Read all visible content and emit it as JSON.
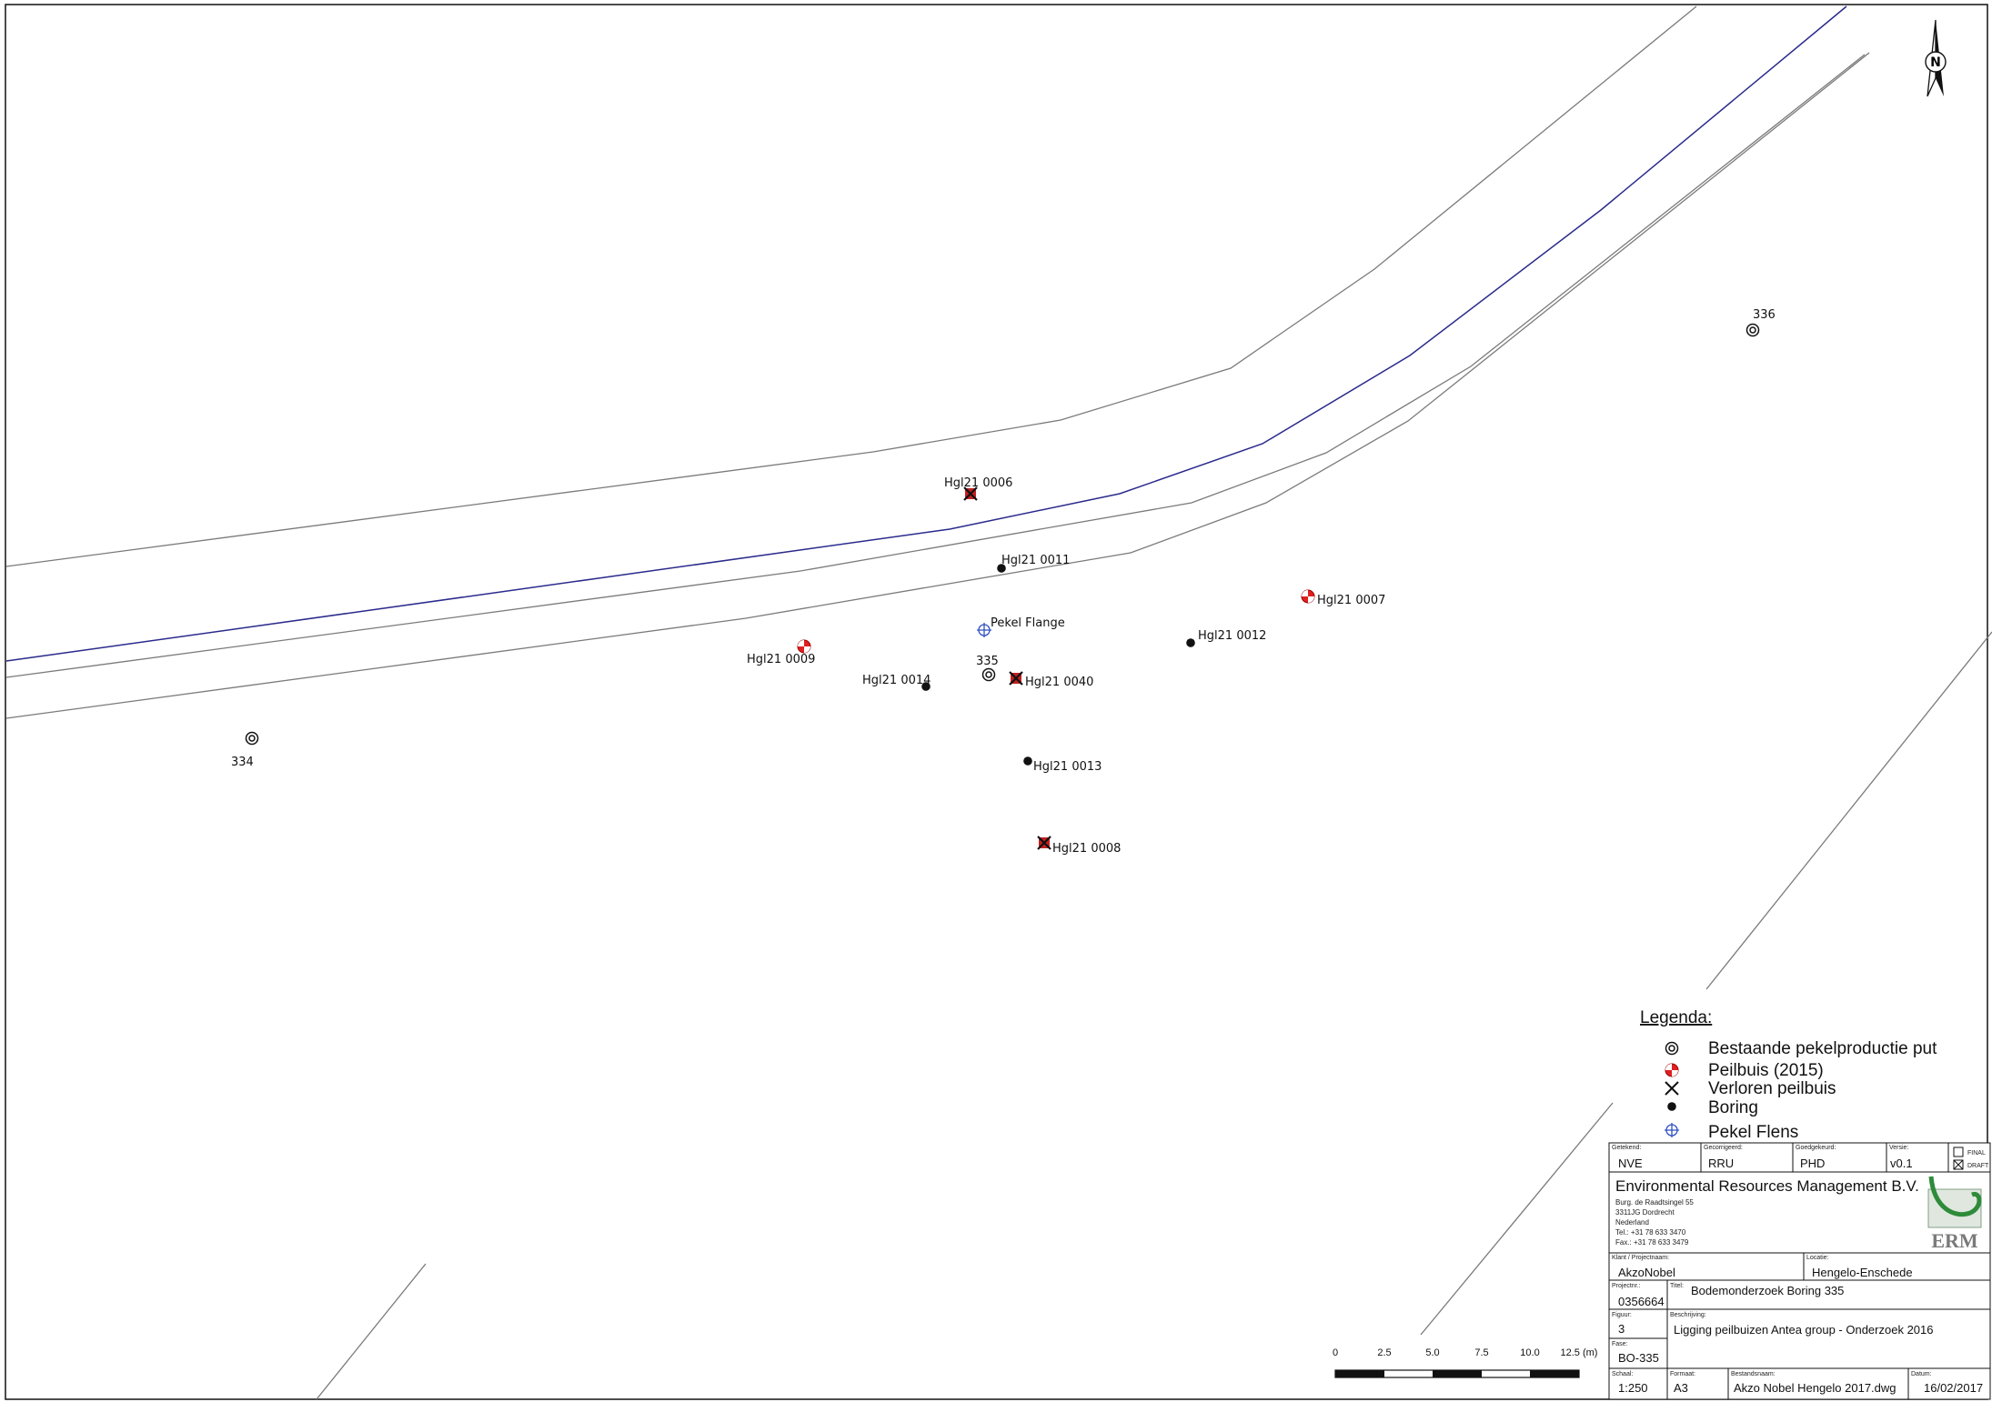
{
  "colors": {
    "canal": "#2a2a8c",
    "road": "#7a7a7a",
    "peilbuis": "#e02020",
    "flens": "#3050c0",
    "ink": "#111111"
  },
  "north_label": "N",
  "points": {
    "hgl_0006": "Hgl21 0006",
    "hgl_0011": "Hgl21 0011",
    "hgl_0007": "Hgl21 0007",
    "pekel_flange": "Pekel Flange",
    "hgl_0012": "Hgl21 0012",
    "hgl_0009": "Hgl21 0009",
    "w335": "335",
    "hgl_0014": "Hgl21 0014",
    "hgl_0040": "Hgl21 0040",
    "w334": "334",
    "hgl_0013": "Hgl21 0013",
    "hgl_0008": "Hgl21 0008",
    "w336": "336"
  },
  "legend": {
    "title": "Legenda:",
    "items": [
      {
        "label": "Bestaande pekelproductie put",
        "icon": "double-circle-icon"
      },
      {
        "label": "Peilbuis (2015)",
        "icon": "red-quartered-circle-icon"
      },
      {
        "label": "Verloren peilbuis",
        "icon": "cross-icon"
      },
      {
        "label": "Boring",
        "icon": "black-dot-icon"
      },
      {
        "label": "Pekel Flens",
        "icon": "blue-crosshair-icon"
      }
    ]
  },
  "scale_bar": {
    "ticks": [
      "0",
      "2.5",
      "5.0",
      "7.5",
      "10.0",
      "12.5 (m)"
    ]
  },
  "title_block": {
    "getekend_label": "Getekend:",
    "getekend": "NVE",
    "gecorrigeerd_label": "Gecorrigeerd:",
    "gecorrigeerd": "RRU",
    "goedgekeurd_label": "Goedgekeurd:",
    "goedgekeurd": "PHD",
    "versie_label": "Versie:",
    "versie": "v0.1",
    "final_label": "FINAL",
    "draft_label": "DRAFT",
    "company": "Environmental Resources Management B.V.",
    "address": [
      "Burg. de Raadtsingel 55",
      "3311JG Dordrecht",
      "Nederland",
      "Tel.: +31 78 633 3470",
      "Fax.: +31 78 633 3479"
    ],
    "logo_text": "ERM",
    "klant_label": "Klant / Projectnaam:",
    "klant": "AkzoNobel",
    "locatie_label": "Locatie:",
    "locatie": "Hengelo-Enschede",
    "projectnr_label": "Projectnr.:",
    "projectnr": "0356664",
    "titel_label": "Titel:",
    "titel": "Bodemonderzoek Boring 335",
    "figuur_label": "Figuur:",
    "figuur": "3",
    "beschrijving_label": "Beschrijving:",
    "beschrijving": "Ligging peilbuizen Antea group - Onderzoek 2016",
    "fase_label": "Fase:",
    "fase": "BO-335",
    "schaal_label": "Schaal:",
    "schaal": "1:250",
    "formaat_label": "Formaat:",
    "formaat": "A3",
    "bestandsnaam_label": "Bestandsnaam:",
    "bestandsnaam": "Akzo Nobel Hengelo 2017.dwg",
    "datum_label": "Datum:",
    "datum": "16/02/2017"
  }
}
